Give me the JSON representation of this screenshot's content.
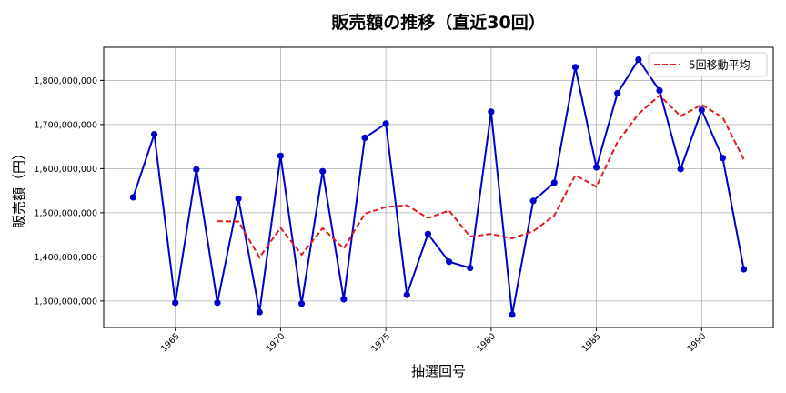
{
  "chart_data": {
    "type": "line",
    "title": "販売額の推移（直近30回）",
    "xlabel": "抽選回号",
    "ylabel": "販売額（円）",
    "xlim": [
      1961.6,
      1993.4
    ],
    "ylim": [
      1240000000,
      1875000000
    ],
    "grid": true,
    "legend_position": "top-right",
    "x_ticks": [
      1965,
      1970,
      1975,
      1980,
      1985,
      1990
    ],
    "y_ticks": [
      1300000000,
      1400000000,
      1500000000,
      1600000000,
      1700000000,
      1800000000
    ],
    "y_tick_labels": [
      "1,300,000,000",
      "1,400,000,000",
      "1,500,000,000",
      "1,600,000,000",
      "1,700,000,000",
      "1,800,000,000"
    ],
    "colors": {
      "sales": "#0000cc",
      "moving_average": "#e31a1c"
    },
    "series": [
      {
        "key": "sales",
        "x": [
          1963,
          1964,
          1965,
          1966,
          1967,
          1968,
          1969,
          1970,
          1971,
          1972,
          1973,
          1974,
          1975,
          1976,
          1977,
          1978,
          1979,
          1980,
          1981,
          1982,
          1983,
          1984,
          1985,
          1986,
          1987,
          1988,
          1989,
          1990,
          1991,
          1992
        ],
        "values": [
          1535000000,
          1678000000,
          1296000000,
          1598000000,
          1296000000,
          1532000000,
          1275000000,
          1629000000,
          1294000000,
          1594000000,
          1304000000,
          1670000000,
          1702000000,
          1314000000,
          1452000000,
          1389000000,
          1375000000,
          1729000000,
          1269000000,
          1527000000,
          1568000000,
          1830000000,
          1603000000,
          1771000000,
          1847000000,
          1777000000,
          1599000000,
          1733000000,
          1624000000,
          1372000000
        ]
      },
      {
        "key": "moving_average",
        "name": "5回移動平均",
        "x": [
          1967,
          1968,
          1969,
          1970,
          1971,
          1972,
          1973,
          1974,
          1975,
          1976,
          1977,
          1978,
          1979,
          1980,
          1981,
          1982,
          1983,
          1984,
          1985,
          1986,
          1987,
          1988,
          1989,
          1990,
          1991,
          1992
        ],
        "values": [
          1481000000,
          1480000000,
          1399000000,
          1466000000,
          1405000000,
          1465000000,
          1419000000,
          1498000000,
          1513000000,
          1517000000,
          1488000000,
          1505000000,
          1446000000,
          1452000000,
          1442000000,
          1458000000,
          1494000000,
          1585000000,
          1559000000,
          1660000000,
          1724000000,
          1766000000,
          1719000000,
          1745000000,
          1716000000,
          1621000000
        ]
      }
    ]
  }
}
